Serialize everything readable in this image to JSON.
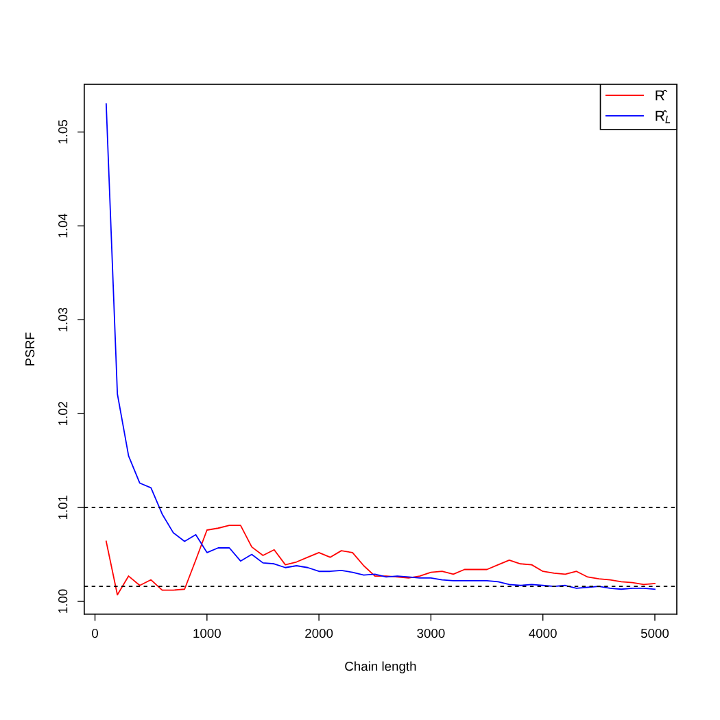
{
  "chart_data": {
    "type": "line",
    "xlabel": "Chain length",
    "ylabel": "PSRF",
    "x": [
      100,
      200,
      300,
      400,
      500,
      600,
      700,
      800,
      900,
      1000,
      1100,
      1200,
      1300,
      1400,
      1500,
      1600,
      1700,
      1800,
      1900,
      2000,
      2100,
      2200,
      2300,
      2400,
      2500,
      2600,
      2700,
      2800,
      2900,
      3000,
      3100,
      3200,
      3300,
      3400,
      3500,
      3600,
      3700,
      3800,
      3900,
      4000,
      4100,
      4200,
      4300,
      4400,
      4500,
      4600,
      4700,
      4800,
      4900,
      5000
    ],
    "series": [
      {
        "name": "R̂",
        "color": "#ff0000",
        "values": [
          1.0064,
          1.0007,
          1.0027,
          1.0017,
          1.0023,
          1.0012,
          1.0012,
          1.0013,
          1.0044,
          1.0076,
          1.0078,
          1.0081,
          1.0081,
          1.0058,
          1.0049,
          1.0055,
          1.0039,
          1.0042,
          1.0047,
          1.0052,
          1.0047,
          1.0054,
          1.0052,
          1.0038,
          1.0027,
          1.0027,
          1.0026,
          1.0025,
          1.0027,
          1.0031,
          1.0032,
          1.0029,
          1.0034,
          1.0034,
          1.0034,
          1.0039,
          1.0044,
          1.004,
          1.0039,
          1.0032,
          1.003,
          1.0029,
          1.0032,
          1.0026,
          1.0024,
          1.0023,
          1.0021,
          1.002,
          1.0018,
          1.0019
        ]
      },
      {
        "name": "R̂$_{L}$",
        "color": "#0000ff",
        "values": [
          1.053,
          1.0221,
          1.0155,
          1.0126,
          1.0121,
          1.0093,
          1.0073,
          1.0064,
          1.0071,
          1.0052,
          1.0057,
          1.0057,
          1.0043,
          1.005,
          1.0041,
          1.004,
          1.0036,
          1.0038,
          1.0036,
          1.0032,
          1.0032,
          1.0033,
          1.0031,
          1.0028,
          1.0029,
          1.0026,
          1.0027,
          1.0026,
          1.0025,
          1.0025,
          1.0023,
          1.0022,
          1.0022,
          1.0022,
          1.0022,
          1.0021,
          1.0018,
          1.0017,
          1.0018,
          1.0017,
          1.0016,
          1.0017,
          1.0014,
          1.0015,
          1.0016,
          1.0014,
          1.0013,
          1.0014,
          1.0014,
          1.0013
        ]
      }
    ],
    "xlim": [
      -96,
      5196
    ],
    "ylim": [
      0.99864,
      1.05509
    ],
    "xticks": [
      0,
      1000,
      2000,
      3000,
      4000,
      5000
    ],
    "yticks": [
      {
        "value": 1.0,
        "label": "1.00"
      },
      {
        "value": 1.01,
        "label": "1.01"
      },
      {
        "value": 1.02,
        "label": "1.02"
      },
      {
        "value": 1.03,
        "label": "1.03"
      },
      {
        "value": 1.04,
        "label": "1.04"
      },
      {
        "value": 1.05,
        "label": "1.05"
      }
    ],
    "ref_lines": [
      {
        "axis": "y",
        "value": 1.01,
        "color": "#000000",
        "line_style": "dashed"
      },
      {
        "axis": "y",
        "value": 1.0016,
        "color": "#000000",
        "line_style": "dashed"
      }
    ],
    "grid": false,
    "legend": "top right",
    "line_style": "solid"
  }
}
